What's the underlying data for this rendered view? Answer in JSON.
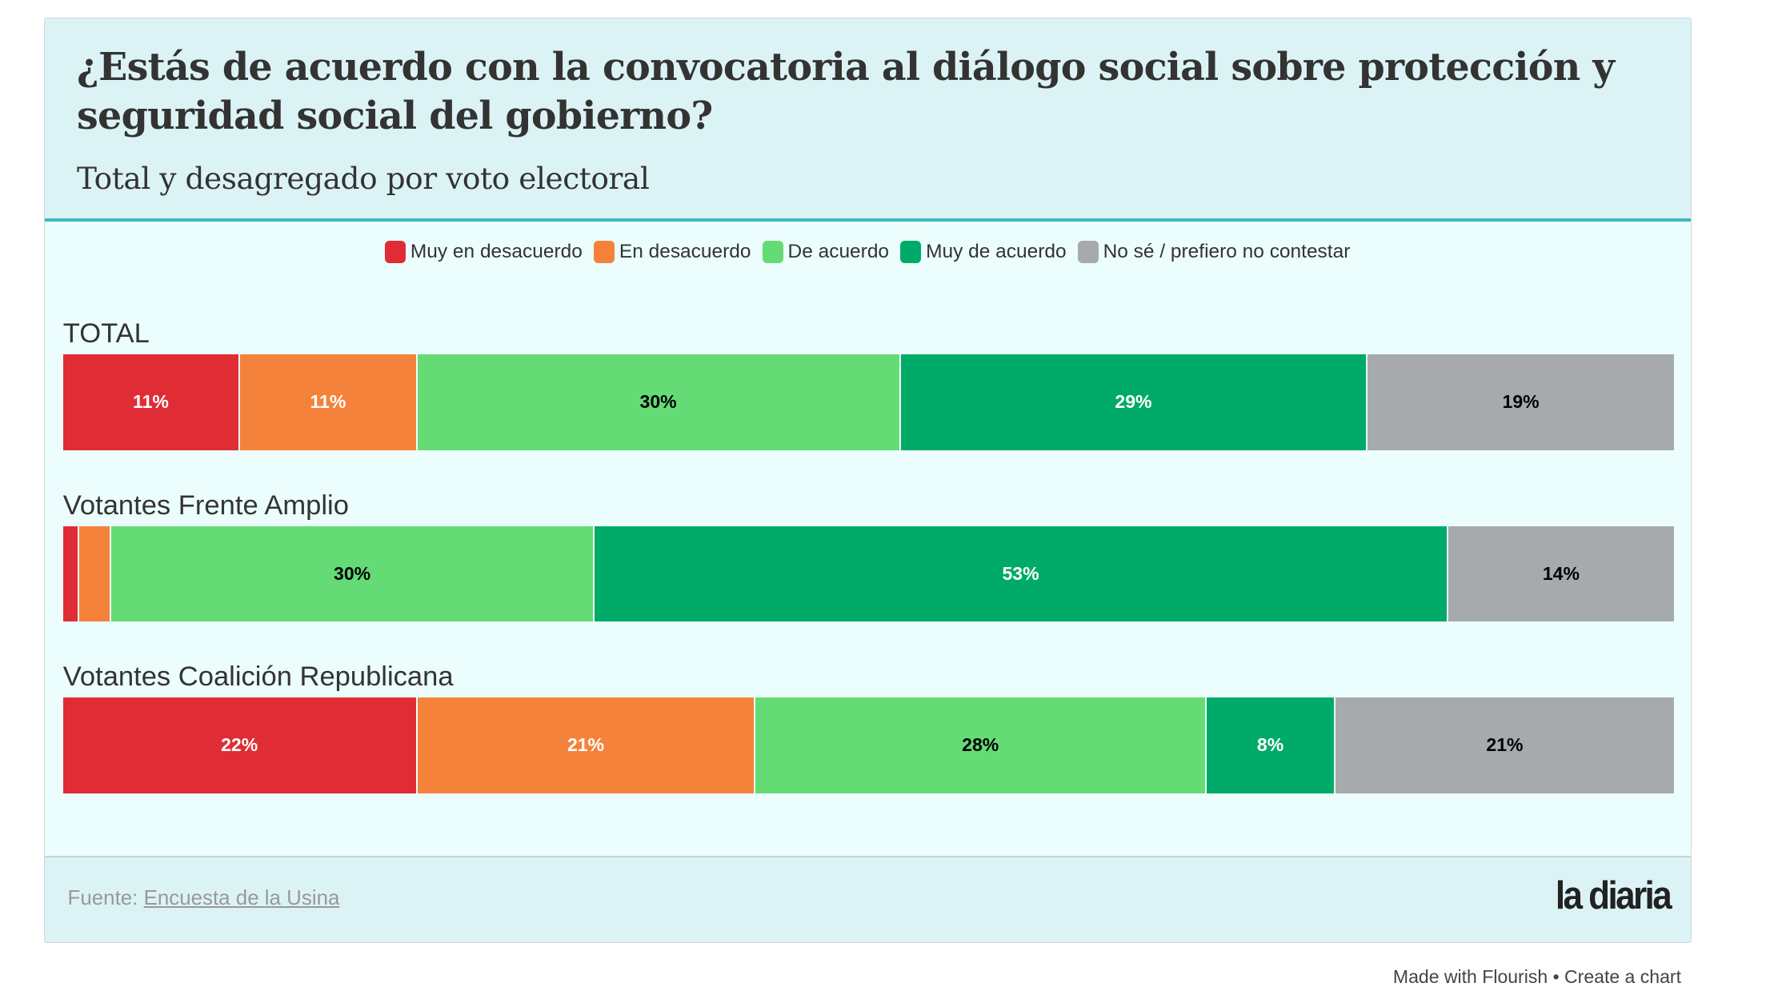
{
  "chart_data": {
    "type": "bar",
    "stacked": true,
    "orientation": "horizontal",
    "title": "¿Estás de acuerdo con la convocatoria al diálogo social sobre protección y seguridad social del gobierno?",
    "subtitle": "Total y desagregado por voto electoral",
    "series": [
      {
        "name": "Muy en desacuerdo",
        "color": "#e02d35",
        "label_color": "#ffffff"
      },
      {
        "name": "En desacuerdo",
        "color": "#f5823a",
        "label_color": "#ffffff"
      },
      {
        "name": "De acuerdo",
        "color": "#65db76",
        "label_color": "#000000"
      },
      {
        "name": "Muy de acuerdo",
        "color": "#00ab69",
        "label_color": "#ffffff"
      },
      {
        "name": "No sé / prefiero no contestar",
        "color": "#a7aaad",
        "label_color": "#000000"
      }
    ],
    "groups": [
      {
        "name": "TOTAL",
        "values": [
          11,
          11,
          30,
          29,
          19
        ],
        "labels": [
          "11%",
          "11%",
          "30%",
          "29%",
          "19%"
        ]
      },
      {
        "name": "Votantes Frente Amplio",
        "values": [
          1,
          2,
          30,
          53,
          14
        ],
        "labels": [
          "",
          "",
          "30%",
          "53%",
          "14%"
        ]
      },
      {
        "name": "Votantes Coalición Republicana",
        "values": [
          22,
          21,
          28,
          8,
          21
        ],
        "labels": [
          "22%",
          "21%",
          "28%",
          "8%",
          "21%"
        ]
      }
    ],
    "xlim": [
      0,
      100
    ],
    "legend": "top-center"
  },
  "footer": {
    "source_prefix": "Fuente: ",
    "source_link": "Encuesta de la Usina",
    "logo": "la diaria"
  },
  "credit": "Made with Flourish • Create a chart"
}
